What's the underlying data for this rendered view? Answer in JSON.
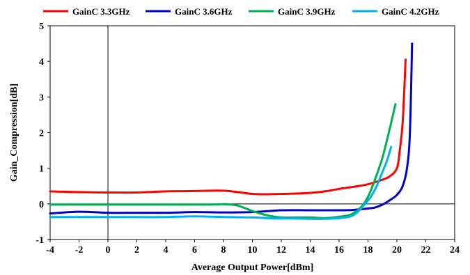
{
  "chart_data": {
    "type": "line",
    "title": "",
    "xlabel": "Average Output Power[dBm]",
    "ylabel": "Gain_Compression[dB]",
    "xlim": [
      -4,
      24
    ],
    "ylim": [
      -1,
      5
    ],
    "x_ticks": [
      -4,
      -2,
      0,
      2,
      4,
      6,
      8,
      10,
      12,
      14,
      16,
      18,
      20,
      22,
      24
    ],
    "y_ticks": [
      -1,
      0,
      1,
      2,
      3,
      4,
      5
    ],
    "grid": false,
    "legend_position": "top",
    "series": [
      {
        "name": "GainC 3.3GHz",
        "color": "#ff0000",
        "x": [
          -4,
          -2,
          0,
          2,
          4,
          6,
          7,
          8,
          9,
          10,
          11,
          12,
          13,
          14,
          15,
          16,
          17,
          18,
          19,
          19.5,
          20,
          20.2,
          20.4,
          20.6
        ],
        "y": [
          0.35,
          0.33,
          0.32,
          0.32,
          0.35,
          0.36,
          0.37,
          0.37,
          0.33,
          0.28,
          0.27,
          0.28,
          0.29,
          0.31,
          0.35,
          0.42,
          0.48,
          0.55,
          0.68,
          0.77,
          1.0,
          1.5,
          2.3,
          4.05
        ]
      },
      {
        "name": "GainC 3.6GHz",
        "color": "#0000cc",
        "x": [
          -4,
          -2,
          0,
          2,
          4,
          6,
          8,
          10,
          12,
          14,
          16,
          17,
          18,
          18.5,
          19,
          19.5,
          20,
          20.4,
          20.7,
          20.9,
          21.05
        ],
        "y": [
          -0.27,
          -0.22,
          -0.25,
          -0.25,
          -0.25,
          -0.23,
          -0.24,
          -0.23,
          -0.18,
          -0.18,
          -0.18,
          -0.17,
          -0.13,
          -0.1,
          -0.02,
          0.1,
          0.25,
          0.5,
          1.0,
          2.0,
          4.5
        ]
      },
      {
        "name": "GainC 3.9GHz",
        "color": "#00b050",
        "x": [
          -4,
          -2,
          0,
          2,
          4,
          6,
          7,
          8,
          8.5,
          9,
          9.5,
          10,
          11,
          12,
          13,
          14,
          15,
          16,
          16.8,
          17.5,
          18,
          18.5,
          19,
          19.5,
          19.9
        ],
        "y": [
          -0.02,
          -0.02,
          -0.02,
          -0.02,
          -0.02,
          -0.02,
          -0.02,
          -0.01,
          -0.02,
          -0.05,
          -0.12,
          -0.2,
          -0.32,
          -0.38,
          -0.38,
          -0.38,
          -0.4,
          -0.36,
          -0.3,
          -0.1,
          0.2,
          0.7,
          1.3,
          2.1,
          2.8
        ]
      },
      {
        "name": "GainC 4.2GHz",
        "color": "#00b0f0",
        "x": [
          -4,
          -2,
          0,
          2,
          4,
          6,
          8,
          10,
          11,
          12,
          13,
          14,
          15,
          16,
          16.8,
          17.3,
          17.8,
          18.2,
          18.6,
          19,
          19.3,
          19.6
        ],
        "y": [
          -0.37,
          -0.37,
          -0.37,
          -0.37,
          -0.37,
          -0.35,
          -0.37,
          -0.38,
          -0.4,
          -0.41,
          -0.41,
          -0.42,
          -0.42,
          -0.4,
          -0.35,
          -0.22,
          0.0,
          0.2,
          0.5,
          0.9,
          1.2,
          1.6
        ]
      }
    ]
  }
}
